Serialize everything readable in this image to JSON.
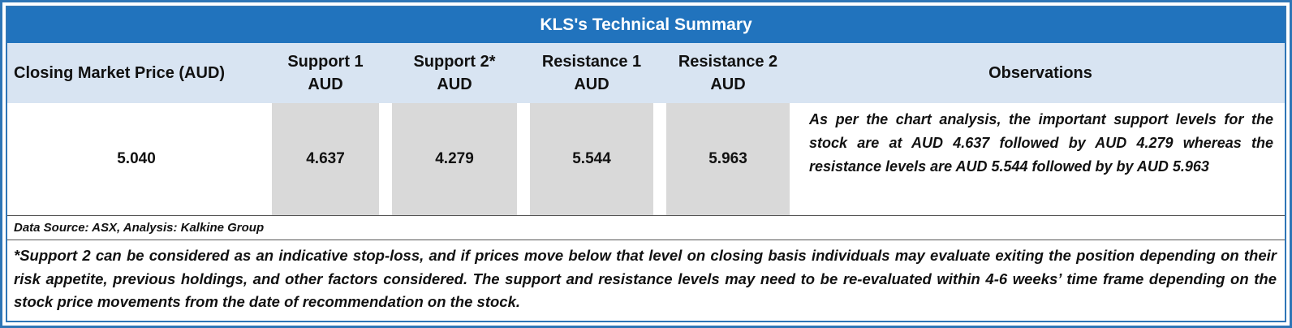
{
  "title": "KLS's Technical Summary",
  "header": {
    "closing_price": {
      "line1": "Closing Market Price (AUD)"
    },
    "support1": {
      "line1": "Support 1",
      "line2": "AUD"
    },
    "support2": {
      "line1": "Support 2*",
      "line2": "AUD"
    },
    "resistance1": {
      "line1": "Resistance 1",
      "line2": "AUD"
    },
    "resistance2": {
      "line1": "Resistance 2",
      "line2": "AUD"
    },
    "observations": {
      "line1": "Observations"
    }
  },
  "values": {
    "closing_price": "5.040",
    "support1": "4.637",
    "support2": "4.279",
    "resistance1": "5.544",
    "resistance2": "5.963"
  },
  "observations_text": "As per the chart analysis, the important support levels for the stock are at AUD 4.637 followed by AUD 4.279 whereas the resistance levels are AUD 5.544 followed by by AUD 5.963",
  "footnotes": {
    "source": "Data Source: ASX, Analysis: Kalkine Group",
    "disclaimer": "*Support 2 can be considered as an indicative stop-loss, and if prices move below that level on closing basis individuals may evaluate exiting the position depending on their risk appetite, previous holdings, and other factors considered. The support and resistance levels may need to be re-evaluated within 4-6 weeks’ time frame depending on the stock price movements from the date of recommendation on the stock."
  },
  "colors": {
    "title_bar": "#2173BD",
    "header_bg": "#D8E4F2",
    "value_cell_bg": "#D9D9D9",
    "border_blue": "#2E75B6",
    "title_text": "#FFFFFF"
  }
}
